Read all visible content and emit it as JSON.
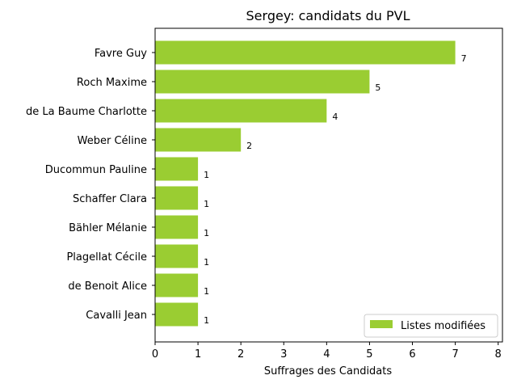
{
  "chart_data": {
    "type": "bar",
    "orientation": "horizontal",
    "title": "Sergey: candidats du PVL",
    "xlabel": "Suffrages des Candidats",
    "ylabel": "",
    "xlim": [
      0,
      8.1
    ],
    "xticks": [
      0,
      1,
      2,
      3,
      4,
      5,
      6,
      7,
      8
    ],
    "categories": [
      "Favre Guy",
      "Roch Maxime",
      "de La Baume Charlotte",
      "Weber Céline",
      "Ducommun Pauline",
      "Schaffer Clara",
      "Bähler Mélanie",
      "Plagellat Cécile",
      "de Benoit Alice",
      "Cavalli Jean"
    ],
    "series": [
      {
        "name": "Listes modifiées",
        "color": "#9acd32",
        "values": [
          7,
          5,
          4,
          2,
          1,
          1,
          1,
          1,
          1,
          1
        ]
      }
    ],
    "data_labels": [
      "7",
      "5",
      "4",
      "2",
      "1",
      "1",
      "1",
      "1",
      "1",
      "1"
    ],
    "legend": {
      "position": "lower-right"
    },
    "grid": false
  }
}
